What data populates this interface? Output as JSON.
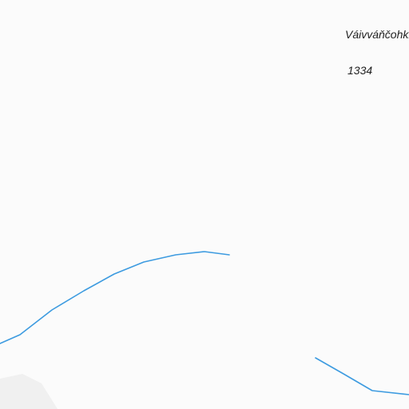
{
  "map": {
    "peak_name": "Váivváňčohkka",
    "peak_elevation": "1334",
    "colors": {
      "background": "#fbfbfb",
      "stream": "#3d9be0",
      "shaded_area": "#f0f0f0"
    }
  }
}
